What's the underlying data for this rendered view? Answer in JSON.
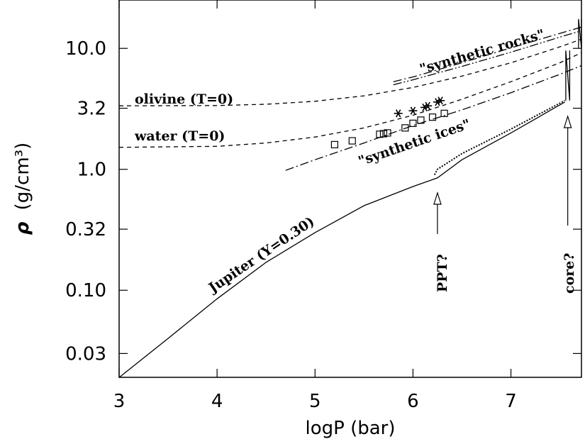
{
  "chart_data": {
    "type": "line",
    "title": "",
    "xlabel": "logP (bar)",
    "ylabel_symbol": "ρ",
    "ylabel_unit": "(g/cm³)",
    "xlim": [
      3,
      7.72
    ],
    "ylim_log10": [
      -1.72,
      1.4
    ],
    "log_y": true,
    "grid": false,
    "legend": "none",
    "x_ticks": [
      {
        "value": 3,
        "label": "3"
      },
      {
        "value": 4,
        "label": "4"
      },
      {
        "value": 5,
        "label": "5"
      },
      {
        "value": 6,
        "label": "6"
      },
      {
        "value": 7,
        "label": "7"
      }
    ],
    "y_ticks": [
      {
        "value": 0.03,
        "label": "0.03"
      },
      {
        "value": 0.1,
        "label": "0.10"
      },
      {
        "value": 0.32,
        "label": "0.32"
      },
      {
        "value": 1.0,
        "label": "1.0"
      },
      {
        "value": 3.2,
        "label": "3.2"
      },
      {
        "value": 10.0,
        "label": "10.0"
      }
    ],
    "series": [
      {
        "key": "olivine",
        "style": "dashed",
        "x": [
          3.0,
          4.0,
          4.5,
          5.0,
          5.5,
          6.0,
          6.5,
          7.0,
          7.5,
          7.72
        ],
        "y": [
          3.35,
          3.37,
          3.45,
          3.65,
          4.05,
          4.75,
          5.9,
          7.6,
          10.3,
          11.9
        ]
      },
      {
        "key": "water",
        "style": "dashed",
        "x": [
          3.0,
          4.0,
          4.5,
          5.0,
          5.5,
          6.0,
          6.5,
          7.0,
          7.5,
          7.72
        ],
        "y": [
          1.52,
          1.55,
          1.65,
          1.85,
          2.2,
          2.8,
          3.8,
          5.3,
          7.6,
          9.2
        ]
      },
      {
        "key": "synthetic-rocks",
        "style": "dash-dot",
        "x": [
          5.8,
          6.0,
          6.5,
          7.0,
          7.5,
          7.72
        ],
        "y": [
          5.3,
          5.8,
          7.6,
          10.1,
          13.3,
          15.0
        ]
      },
      {
        "key": "synthetic-rocks-2",
        "style": "dash-dot-dot",
        "x": [
          5.8,
          6.0,
          6.5,
          7.0,
          7.5,
          7.72
        ],
        "y": [
          5.0,
          5.5,
          7.1,
          9.3,
          12.4,
          14.0
        ]
      },
      {
        "key": "synthetic-ices",
        "style": "dash-dot",
        "x": [
          4.7,
          5.0,
          5.5,
          6.0,
          6.5,
          7.0,
          7.5,
          7.72
        ],
        "y": [
          0.98,
          1.2,
          1.65,
          2.3,
          3.1,
          4.3,
          6.1,
          7.2
        ]
      },
      {
        "key": "jupiter",
        "style": "solid",
        "x": [
          3.0,
          3.5,
          4.0,
          4.5,
          5.0,
          5.5,
          6.0,
          6.25,
          6.5,
          7.0,
          7.55
        ],
        "y": [
          0.019,
          0.04,
          0.085,
          0.17,
          0.3,
          0.5,
          0.72,
          0.85,
          1.2,
          2.0,
          3.6
        ]
      },
      {
        "key": "jupiter-ppt-branch",
        "style": "dotted",
        "x": [
          6.22,
          6.25,
          6.5,
          7.0,
          7.55
        ],
        "y": [
          0.9,
          1.0,
          1.35,
          2.15,
          3.7
        ]
      },
      {
        "key": "core-jump",
        "style": "solid",
        "x": [
          7.56,
          7.56,
          7.6,
          7.6
        ],
        "y": [
          3.7,
          9.6,
          3.7,
          9.6
        ]
      },
      {
        "key": "outer-jump",
        "style": "solid",
        "x": [
          7.69,
          7.69,
          7.72,
          7.72
        ],
        "y": [
          10.0,
          17.5,
          10.0,
          17.5
        ]
      }
    ],
    "points": {
      "squares": [
        {
          "x": 5.2,
          "y": 1.6
        },
        {
          "x": 5.38,
          "y": 1.72
        },
        {
          "x": 5.66,
          "y": 1.95
        },
        {
          "x": 5.7,
          "y": 1.97
        },
        {
          "x": 5.74,
          "y": 2.0
        },
        {
          "x": 5.92,
          "y": 2.2
        },
        {
          "x": 6.0,
          "y": 2.4
        },
        {
          "x": 6.08,
          "y": 2.55
        },
        {
          "x": 6.2,
          "y": 2.7
        },
        {
          "x": 6.32,
          "y": 2.9
        }
      ],
      "stars": [
        {
          "x": 5.85,
          "y": 2.9
        },
        {
          "x": 6.0,
          "y": 3.05
        },
        {
          "x": 6.12,
          "y": 3.25
        },
        {
          "x": 6.15,
          "y": 3.35
        },
        {
          "x": 6.25,
          "y": 3.6
        },
        {
          "x": 6.28,
          "y": 3.7
        }
      ]
    },
    "annotations": {
      "olivine": "olivine (T=0)",
      "water": "water (T=0)",
      "synthetic_rocks": "\"synthetic rocks\"",
      "synthetic_ices": "\"synthetic ices\"",
      "jupiter": "Jupiter (Y=0.30)",
      "ppt": "PPT?",
      "core": "core?"
    },
    "arrows": [
      {
        "key": "ppt",
        "x": 6.25
      },
      {
        "key": "core",
        "x": 7.58
      }
    ]
  }
}
